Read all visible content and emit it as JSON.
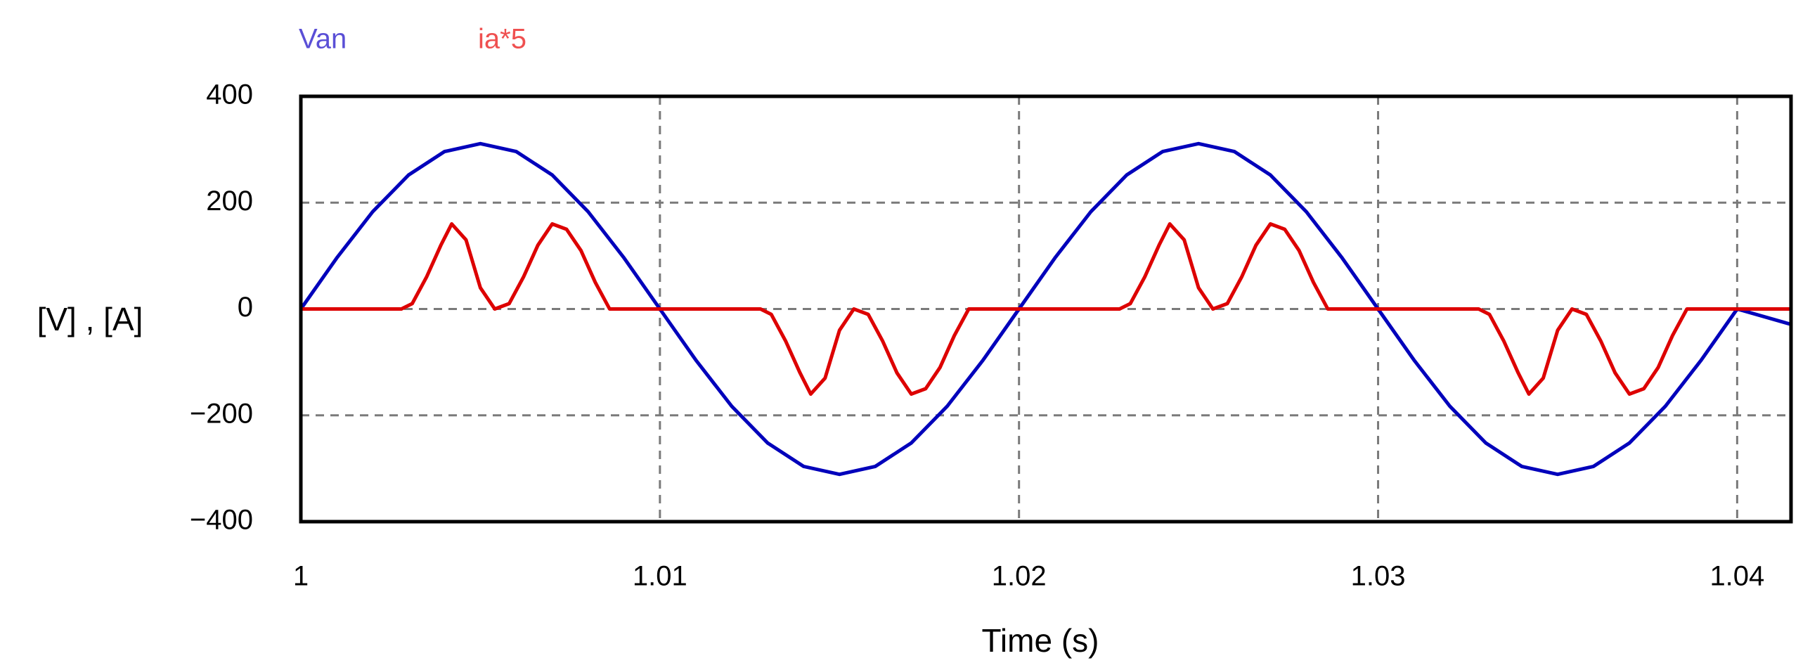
{
  "chart_data": {
    "type": "line",
    "xlabel": "Time (s)",
    "ylabel": "[V] , [A]",
    "xlim": [
      1.0,
      1.0415
    ],
    "ylim": [
      -400,
      400
    ],
    "x_ticks": [
      {
        "value": 1.0,
        "label": "1"
      },
      {
        "value": 1.01,
        "label": "1.01"
      },
      {
        "value": 1.02,
        "label": "1.02"
      },
      {
        "value": 1.03,
        "label": "1.03"
      },
      {
        "value": 1.04,
        "label": "1.04"
      }
    ],
    "y_ticks": [
      {
        "value": 400,
        "label": "400"
      },
      {
        "value": 200,
        "label": "200"
      },
      {
        "value": 0,
        "label": "0"
      },
      {
        "value": -200,
        "label": "−200"
      },
      {
        "value": -400,
        "label": "−400"
      }
    ],
    "grid": true,
    "legend_position": "top-left",
    "series": [
      {
        "name": "Van",
        "color": "#0000bb",
        "x": [
          1.0,
          1.001,
          1.002,
          1.003,
          1.004,
          1.005,
          1.006,
          1.007,
          1.008,
          1.009,
          1.01,
          1.011,
          1.012,
          1.013,
          1.014,
          1.015,
          1.016,
          1.017,
          1.018,
          1.019,
          1.02,
          1.021,
          1.022,
          1.023,
          1.024,
          1.025,
          1.026,
          1.027,
          1.028,
          1.029,
          1.03,
          1.031,
          1.032,
          1.033,
          1.034,
          1.035,
          1.036,
          1.037,
          1.038,
          1.039,
          1.04,
          1.0415
        ],
        "y": [
          0,
          96,
          183,
          252,
          296,
          311,
          296,
          252,
          183,
          96,
          0,
          -96,
          -183,
          -252,
          -296,
          -311,
          -296,
          -252,
          -183,
          -96,
          0,
          96,
          183,
          252,
          296,
          311,
          296,
          252,
          183,
          96,
          0,
          -96,
          -183,
          -252,
          -296,
          -311,
          -296,
          -252,
          -183,
          -96,
          0,
          -29
        ]
      },
      {
        "name": "ia*5",
        "color": "#dd0000",
        "x": [
          1.0,
          1.0028,
          1.0031,
          1.0035,
          1.0039,
          1.0042,
          1.0046,
          1.005,
          1.0054,
          1.0058,
          1.0062,
          1.0066,
          1.007,
          1.0074,
          1.0078,
          1.0082,
          1.0086,
          1.0089,
          1.0128,
          1.0131,
          1.0135,
          1.0139,
          1.0142,
          1.0146,
          1.015,
          1.0154,
          1.0158,
          1.0162,
          1.0166,
          1.017,
          1.0174,
          1.0178,
          1.0182,
          1.0186,
          1.0189,
          1.0228,
          1.0231,
          1.0235,
          1.0239,
          1.0242,
          1.0246,
          1.025,
          1.0254,
          1.0258,
          1.0262,
          1.0266,
          1.027,
          1.0274,
          1.0278,
          1.0282,
          1.0286,
          1.0289,
          1.0328,
          1.0331,
          1.0335,
          1.0339,
          1.0342,
          1.0346,
          1.035,
          1.0354,
          1.0358,
          1.0362,
          1.0366,
          1.037,
          1.0374,
          1.0378,
          1.0382,
          1.0386,
          1.0389,
          1.0415
        ],
        "y": [
          0,
          0,
          10,
          60,
          120,
          160,
          130,
          40,
          0,
          10,
          60,
          120,
          160,
          150,
          110,
          50,
          0,
          0,
          0,
          -10,
          -60,
          -120,
          -160,
          -130,
          -40,
          0,
          -10,
          -60,
          -120,
          -160,
          -150,
          -110,
          -50,
          0,
          0,
          0,
          10,
          60,
          120,
          160,
          130,
          40,
          0,
          10,
          60,
          120,
          160,
          150,
          110,
          50,
          0,
          0,
          0,
          -10,
          -60,
          -120,
          -160,
          -130,
          -40,
          0,
          -10,
          -60,
          -120,
          -160,
          -150,
          -110,
          -50,
          0,
          0,
          0
        ]
      }
    ]
  }
}
